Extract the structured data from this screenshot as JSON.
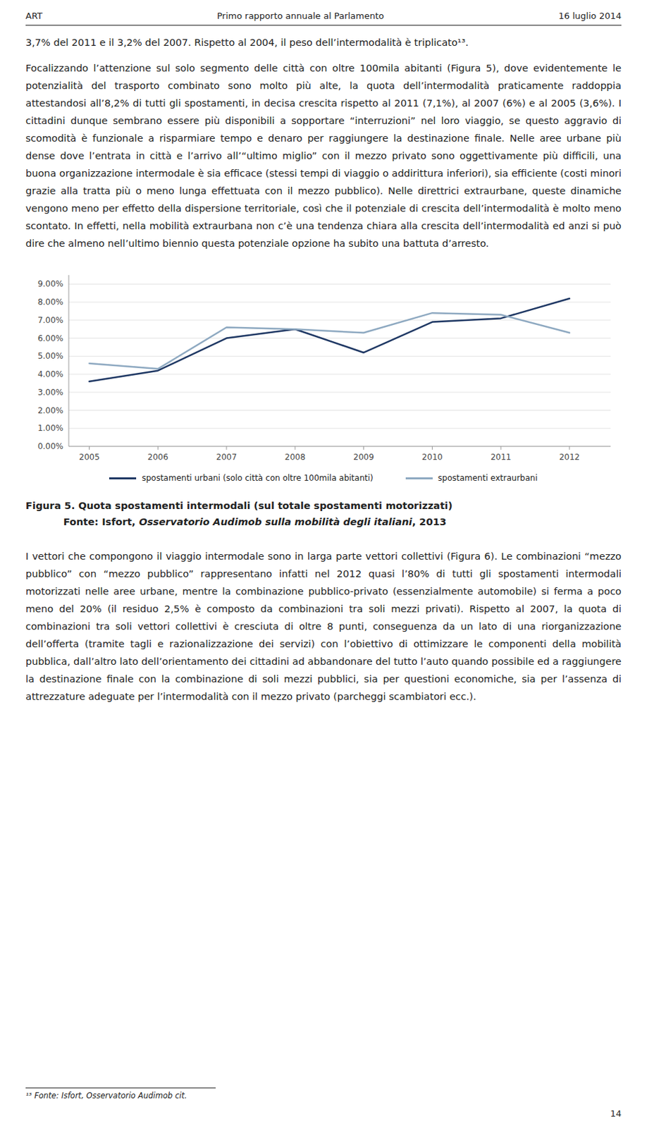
{
  "header": {
    "left": "ART",
    "center": "Primo rapporto annuale al Parlamento",
    "right": "16 luglio 2014"
  },
  "paragraphs_before": [
    "3,7% del 2011 e il 3,2% del 2007. Rispetto al 2004, il peso dell’intermodalità è triplicato¹³.",
    "Focalizzando l’attenzione sul solo segmento delle città con oltre 100mila abitanti (Figura 5), dove evidentemente le potenzialità del trasporto combinato sono molto più alte, la quota dell’intermodalità praticamente raddoppia attestandosi all’8,2% di tutti gli spostamenti, in decisa crescita rispetto al 2011 (7,1%), al 2007 (6%) e al 2005 (3,6%). I cittadini dunque sembrano essere più disponibili a sopportare “interruzioni” nel loro viaggio, se questo aggravio di scomodità è funzionale a risparmiare tempo e denaro per raggiungere la destinazione finale. Nelle aree urbane più dense dove l’entrata in città e l’arrivo all’“ultimo miglio” con il mezzo privato sono oggettivamente più difficili, una buona organizzazione intermodale è sia efficace (stessi tempi di viaggio o addirittura inferiori), sia efficiente (costi minori grazie alla tratta più o meno lunga effettuata con il mezzo pubblico). Nelle direttrici extraurbane, queste dinamiche vengono meno per effetto della dispersione territoriale, così che il potenziale di crescita dell’intermodalità è molto meno scontato. In effetti, nella mobilità extraurbana non c’è una tendenza chiara alla crescita dell’intermodalità ed anzi si può dire che almeno nell’ultimo biennio questa potenziale opzione ha subito una battuta d’arresto."
  ],
  "chart_data": {
    "type": "line",
    "title": "Figura 5. Quota spostamenti intermodali (sul totale spostamenti motorizzati)",
    "x": [
      2005,
      2006,
      2007,
      2008,
      2009,
      2010,
      2011,
      2012
    ],
    "series": [
      {
        "name": "spostamenti urbani (solo città con oltre 100mila abitanti)",
        "color": "#1F3864",
        "values": [
          3.6,
          4.2,
          6.0,
          6.5,
          5.2,
          6.9,
          7.1,
          8.2
        ]
      },
      {
        "name": "spostamenti extraurbani",
        "color": "#8EA9C1",
        "values": [
          4.6,
          4.3,
          6.6,
          6.5,
          6.3,
          7.4,
          7.3,
          6.3
        ]
      }
    ],
    "xlim": [
      2004.7,
      2012.6
    ],
    "xticks": [
      2005,
      2006,
      2007,
      2008,
      2009,
      2010,
      2011,
      2012
    ],
    "ylim": [
      0,
      9.5
    ],
    "yticks": [
      {
        "value": 0.0,
        "label": "0.00%"
      },
      {
        "value": 1.0,
        "label": "1.00%"
      },
      {
        "value": 2.0,
        "label": "2.00%"
      },
      {
        "value": 3.0,
        "label": "3.00%"
      },
      {
        "value": 4.0,
        "label": "4.00%"
      },
      {
        "value": 5.0,
        "label": "5.00%"
      },
      {
        "value": 6.0,
        "label": "6.00%"
      },
      {
        "value": 7.0,
        "label": "7.00%"
      },
      {
        "value": 8.0,
        "label": "8.00%"
      },
      {
        "value": 9.0,
        "label": "9.00%"
      }
    ],
    "grid": true
  },
  "figure_source": {
    "prefix": "Fonte: Isfort, ",
    "italic": "Osservatorio Audimob sulla mobilità degli italiani",
    "end": ", 2013"
  },
  "paragraphs_after": [
    "I vettori che compongono il viaggio intermodale sono in larga parte vettori collettivi (Figura 6). Le combinazioni “mezzo pubblico” con “mezzo pubblico” rappresentano infatti nel 2012 quasi l’80% di tutti gli spostamenti intermodali motorizzati nelle aree urbane, mentre la combinazione pubblico-privato (essenzialmente automobile) si ferma a poco meno del 20% (il residuo 2,5% è composto da combinazioni tra soli mezzi privati). Rispetto al 2007, la quota di combinazioni tra soli vettori collettivi è cresciuta di oltre 8 punti, conseguenza da un lato di una riorganizzazione dell’offerta (tramite tagli e razionalizzazione dei servizi) con l’obiettivo di ottimizzare le componenti della mobilità pubblica, dall’altro lato dell’orientamento dei cittadini ad abbandonare del tutto l’auto quando possibile ed a raggiungere la destinazione finale con la combinazione di soli mezzi pubblici, sia per questioni economiche, sia per l’assenza di attrezzature adeguate per l’intermodalità con il mezzo privato (parcheggi scambiatori ecc.)."
  ],
  "footer_note": "¹³ Fonte: Isfort, Osservatorio Audimob cit.",
  "footer_page": "14"
}
